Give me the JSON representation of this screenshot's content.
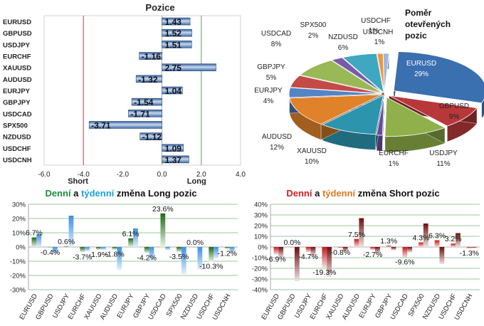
{
  "positions_panel": {
    "title": "Pozice",
    "short_label": "Short",
    "long_label": "Long"
  },
  "pie_panel": {
    "title": "Poměr otevřených pozic"
  },
  "daily_long_panel": {
    "title_parts": [
      "Denní",
      " a ",
      "týdenní",
      " změna Long pozic"
    ]
  },
  "daily_short_panel": {
    "title_parts": [
      "Denní",
      " a ",
      "týdenní",
      " změna Short pozic"
    ]
  },
  "colors": {
    "title_green": "#1e8f3c",
    "title_blue": "#1aa3d8",
    "title_red": "#d42020",
    "title_orange": "#e07a1f",
    "bar_blue": "#5a86c6",
    "long_line": "#58a558",
    "short_line": "#c04040"
  },
  "chart_data": [
    {
      "type": "bar",
      "orientation": "horizontal",
      "title": "Pozice",
      "categories": [
        "EURUSD",
        "GBPUSD",
        "USDJPY",
        "EURCHF",
        "XAUUSD",
        "AUDUSD",
        "EURJPY",
        "GBPJPY",
        "USDCAD",
        "SPX500",
        "NZDUSD",
        "USDCHF",
        "USDCNH"
      ],
      "values": [
        1.43,
        1.52,
        1.51,
        -1.16,
        2.75,
        -1.32,
        1.04,
        -1.54,
        -1.71,
        -3.71,
        -1.12,
        1.09,
        1.37
      ],
      "value_labels": [
        "1.43",
        "1.52",
        "1.51",
        "-1.16",
        "2.75",
        "-1.32",
        "1.04",
        "-1.54",
        "-1.71",
        "-3.71",
        "-1.12",
        "1.09",
        "1.37"
      ],
      "xlim": [
        -6,
        4
      ],
      "xticks": [
        "-6.0",
        "-4.0",
        "-2.0",
        "0.0",
        "2.0",
        "4.0"
      ],
      "reference_lines": {
        "short": -4,
        "long": 2
      }
    },
    {
      "type": "pie",
      "title": "Poměr otevřených pozic",
      "slices": [
        {
          "label": "EURUSD",
          "value": 29,
          "text": "29%",
          "color": "#3a6fb0"
        },
        {
          "label": "GBPUSD",
          "value": 9,
          "text": "9%",
          "color": "#b8383a"
        },
        {
          "label": "USDJPY",
          "value": 11,
          "text": "11%",
          "color": "#8fb04a"
        },
        {
          "label": "EURCHF",
          "value": 1,
          "text": "1%",
          "color": "#6a4a96"
        },
        {
          "label": "XAUUSD",
          "value": 10,
          "text": "10%",
          "color": "#2c94ad"
        },
        {
          "label": "AUDUSD",
          "value": 12,
          "text": "12%",
          "color": "#e0822a"
        },
        {
          "label": "EURJPY",
          "value": 4,
          "text": "4%",
          "color": "#5384c6"
        },
        {
          "label": "GBPJPY",
          "value": 5,
          "text": "5%",
          "color": "#c44a48"
        },
        {
          "label": "USDCAD",
          "value": 8,
          "text": "8%",
          "color": "#98b956"
        },
        {
          "label": "SPX500",
          "value": 2,
          "text": "2%",
          "color": "#7a5aa8"
        },
        {
          "label": "NZDUSD",
          "value": 6,
          "text": "6%",
          "color": "#3fa7c0"
        },
        {
          "label": "USDCHF",
          "value": 1,
          "text": "1%",
          "color": "#f0963e"
        },
        {
          "label": "USDCNH",
          "value": 1,
          "text": "1%",
          "color": "#9cb8dc"
        }
      ]
    },
    {
      "type": "bar",
      "title": "Denní a týdenní změna Long pozic",
      "categories": [
        "EURUSD",
        "GBPUSD",
        "USDJPY",
        "EURCHF",
        "XAUUSD",
        "AUDUSD",
        "EURJPY",
        "GBPJPY",
        "USDCAD",
        "SPX500",
        "NZDUSD",
        "USDCHF",
        "USDCNH"
      ],
      "ylim": [
        -30,
        30
      ],
      "yticks": [
        "30%",
        "20%",
        "10%",
        "0%",
        "-10%",
        "-20%",
        "-30%"
      ],
      "series": [
        {
          "name": "Denní",
          "color": "#3a8a32",
          "values": [
            6.7,
            -0.4,
            0.6,
            -3.7,
            -1.9,
            -1.8,
            6.1,
            -4.2,
            23.6,
            -3.5,
            0.0,
            -10.3,
            -1.2
          ]
        },
        {
          "name": "týdenní",
          "color": "#5aaae8",
          "values": [
            9,
            -5,
            22,
            -3,
            -2,
            -16,
            13,
            -10,
            -2,
            -19,
            -16,
            -8,
            -4
          ]
        }
      ],
      "data_labels": [
        "6.7%",
        "-0.4%",
        "0.6%",
        "-3.7%",
        "-1.9%",
        "-1.8%",
        "6.1%",
        "-4.2%",
        "23.6%",
        "-3.5%",
        "0.0%",
        "-10.3%",
        "-1.2%"
      ]
    },
    {
      "type": "bar",
      "title": "Denní a týdenní změna Short pozic",
      "categories": [
        "EURUSD",
        "GBPUSD",
        "USDJPY",
        "EURCHF",
        "XAUUSD",
        "AUDUSD",
        "EURJPY",
        "GBPJPY",
        "USDCAD",
        "SPX500",
        "NZDUSD",
        "USDCHF",
        "USDCNH"
      ],
      "ylim": [
        -40,
        40
      ],
      "yticks": [
        "40%",
        "30%",
        "20%",
        "10%",
        "0%",
        "-10%",
        "-20%",
        "-30%",
        "-40%"
      ],
      "series": [
        {
          "name": "Denní",
          "color": "#c81818",
          "values": [
            -6.9,
            0.0,
            -4.7,
            -19.3,
            -0.8,
            7.5,
            -2.7,
            1.3,
            -9.6,
            4.3,
            6.3,
            3.2,
            -1.3
          ]
        },
        {
          "name": "týdenní",
          "color": "#8a1a1a",
          "values": [
            -10,
            -32,
            -8,
            -28,
            -4,
            27,
            -6,
            -3,
            -5,
            22,
            -16,
            13,
            -1
          ]
        }
      ],
      "data_labels": [
        "-6.9%",
        "0.0%",
        "-4.7%",
        "-19.3%",
        "-0.8%",
        "7.5%",
        "-2.7%",
        "1.3%",
        "-9.6%",
        "4.3%",
        "6.3%",
        "3.2%",
        "-1.3%"
      ]
    }
  ]
}
